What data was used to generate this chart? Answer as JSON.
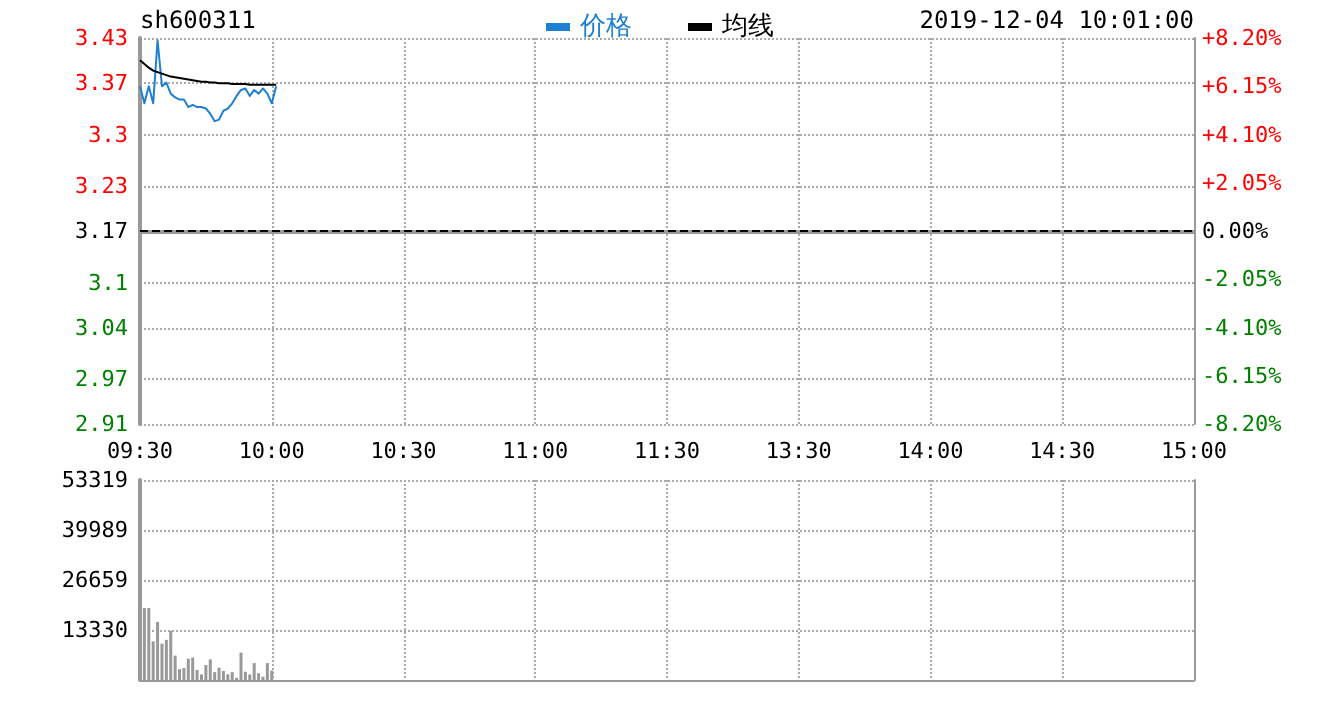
{
  "chart_data": [
    {
      "type": "line",
      "title": "sh600311",
      "annotations": [
        "2019-12-04 10:01:00"
      ],
      "legend": "top",
      "grid": true,
      "categories": [
        "09:30",
        null,
        null,
        null,
        null,
        null,
        null,
        null,
        null,
        null,
        null,
        null,
        null,
        null,
        null,
        null,
        null,
        null,
        null,
        null,
        null,
        null,
        null,
        null,
        null,
        null,
        null,
        null,
        null,
        null,
        "10:00",
        null,
        null,
        null,
        null,
        null,
        null,
        null,
        null,
        null,
        null,
        null,
        null,
        null,
        null,
        null,
        null,
        null,
        null,
        null,
        null,
        null,
        null,
        null,
        null,
        null,
        null,
        null,
        null,
        null,
        "10:30",
        null,
        null,
        null,
        null,
        null,
        null,
        null,
        null,
        null,
        null,
        null,
        null,
        null,
        null,
        null,
        null,
        null,
        null,
        null,
        null,
        null,
        null,
        null,
        null,
        null,
        null,
        null,
        null,
        null,
        "11:00",
        null,
        null,
        null,
        null,
        null,
        null,
        null,
        null,
        null,
        null,
        null,
        null,
        null,
        null,
        null,
        null,
        null,
        null,
        null,
        null,
        null,
        null,
        null,
        null,
        null,
        null,
        null,
        null,
        null,
        "11:30",
        null,
        null,
        null,
        null,
        null,
        null,
        null,
        null,
        null,
        null,
        null,
        null,
        null,
        null,
        null,
        null,
        null,
        null,
        null,
        null,
        null,
        null,
        null,
        null,
        null,
        null,
        null,
        null,
        null,
        "13:30",
        null,
        null,
        null,
        null,
        null,
        null,
        null,
        null,
        null,
        null,
        null,
        null,
        null,
        null,
        null,
        null,
        null,
        null,
        null,
        null,
        null,
        null,
        null,
        null,
        null,
        null,
        null,
        null,
        null,
        "14:00",
        null,
        null,
        null,
        null,
        null,
        null,
        null,
        null,
        null,
        null,
        null,
        null,
        null,
        null,
        null,
        null,
        null,
        null,
        null,
        null,
        null,
        null,
        null,
        null,
        null,
        null,
        null,
        null,
        null,
        "14:30",
        null,
        null,
        null,
        null,
        null,
        null,
        null,
        null,
        null,
        null,
        null,
        null,
        null,
        null,
        null,
        null,
        null,
        null,
        null,
        null,
        null,
        null,
        null,
        null,
        null,
        null,
        null,
        null,
        null,
        "15:00"
      ],
      "ylim": [
        2.91,
        3.43
      ],
      "yticks": [
        2.91,
        2.97,
        3.04,
        3.1,
        3.17,
        3.23,
        3.3,
        3.37,
        3.43
      ],
      "y2lim": [
        -8.2,
        8.2
      ],
      "y2ticks": [
        {
          "value": -8.2,
          "label": "-8.20%"
        },
        {
          "value": -6.15,
          "label": "-6.15%"
        },
        {
          "value": -4.1,
          "label": "-4.10%"
        },
        {
          "value": -2.05,
          "label": "-2.05%"
        },
        {
          "value": 0,
          "label": "0.00%"
        },
        {
          "value": 2.05,
          "label": "+2.05%"
        },
        {
          "value": 4.1,
          "label": "+4.10%"
        },
        {
          "value": 6.15,
          "label": "+6.15%"
        },
        {
          "value": 8.2,
          "label": "+8.20%"
        }
      ],
      "ref_lines": [
        {
          "axis": "y",
          "value": 3.17,
          "color": "#000000",
          "line_style": "dashed"
        }
      ],
      "series": [
        {
          "name": "价格",
          "color": "#1f7fd0",
          "values": [
            3.365,
            3.342,
            3.365,
            3.342,
            3.427,
            3.365,
            3.37,
            3.355,
            3.35,
            3.347,
            3.347,
            3.337,
            3.34,
            3.337,
            3.337,
            3.335,
            3.328,
            3.318,
            3.32,
            3.332,
            3.335,
            3.342,
            3.352,
            3.36,
            3.362,
            3.352,
            3.36,
            3.355,
            3.362,
            3.355,
            3.342,
            3.365,
            null,
            null,
            null,
            null,
            null,
            null,
            null,
            null,
            null,
            null,
            null,
            null,
            null,
            null,
            null,
            null,
            null,
            null,
            null,
            null,
            null,
            null,
            null,
            null,
            null,
            null,
            null,
            null,
            null,
            null,
            null,
            null,
            null,
            null,
            null,
            null,
            null,
            null,
            null,
            null,
            null,
            null,
            null,
            null,
            null,
            null,
            null,
            null,
            null,
            null,
            null,
            null,
            null,
            null,
            null,
            null,
            null,
            null,
            null,
            null,
            null,
            null,
            null,
            null,
            null,
            null,
            null,
            null,
            null,
            null,
            null,
            null,
            null,
            null,
            null,
            null,
            null,
            null,
            null,
            null,
            null,
            null,
            null,
            null,
            null,
            null,
            null,
            null,
            null,
            null,
            null,
            null,
            null,
            null,
            null,
            null,
            null,
            null,
            null,
            null,
            null,
            null,
            null,
            null,
            null,
            null,
            null,
            null,
            null,
            null,
            null,
            null,
            null,
            null,
            null,
            null,
            null,
            null,
            null,
            null,
            null,
            null,
            null,
            null,
            null,
            null,
            null,
            null,
            null,
            null,
            null,
            null,
            null,
            null,
            null,
            null,
            null,
            null,
            null,
            null,
            null,
            null,
            null,
            null,
            null,
            null,
            null,
            null,
            null,
            null,
            null,
            null,
            null,
            null,
            null,
            null,
            null,
            null,
            null,
            null,
            null,
            null,
            null,
            null,
            null,
            null,
            null,
            null,
            null,
            null,
            null,
            null,
            null,
            null,
            null,
            null,
            null,
            null,
            null,
            null,
            null,
            null,
            null,
            null,
            null,
            null,
            null,
            null,
            null,
            null,
            null,
            null,
            null,
            null,
            null,
            null,
            null,
            null,
            null,
            null,
            null,
            null,
            null,
            null,
            null,
            null,
            null,
            null,
            null
          ]
        },
        {
          "name": "均线",
          "color": "#000000",
          "values": [
            3.4,
            3.395,
            3.39,
            3.386,
            3.384,
            3.382,
            3.38,
            3.378,
            3.377,
            3.376,
            3.375,
            3.374,
            3.373,
            3.372,
            3.371,
            3.371,
            3.37,
            3.37,
            3.369,
            3.369,
            3.369,
            3.368,
            3.368,
            3.368,
            3.368,
            3.367,
            3.367,
            3.367,
            3.367,
            3.367,
            3.367,
            3.367,
            null,
            null,
            null,
            null,
            null,
            null,
            null,
            null,
            null,
            null,
            null,
            null,
            null,
            null,
            null,
            null,
            null,
            null,
            null,
            null,
            null,
            null,
            null,
            null,
            null,
            null,
            null,
            null,
            null,
            null,
            null,
            null,
            null,
            null,
            null,
            null,
            null,
            null,
            null,
            null,
            null,
            null,
            null,
            null,
            null,
            null,
            null,
            null,
            null,
            null,
            null,
            null,
            null,
            null,
            null,
            null,
            null,
            null,
            null,
            null,
            null,
            null,
            null,
            null,
            null,
            null,
            null,
            null,
            null,
            null,
            null,
            null,
            null,
            null,
            null,
            null,
            null,
            null,
            null,
            null,
            null,
            null,
            null,
            null,
            null,
            null,
            null,
            null,
            null,
            null,
            null,
            null,
            null,
            null,
            null,
            null,
            null,
            null,
            null,
            null,
            null,
            null,
            null,
            null,
            null,
            null,
            null,
            null,
            null,
            null,
            null,
            null,
            null,
            null,
            null,
            null,
            null,
            null,
            null,
            null,
            null,
            null,
            null,
            null,
            null,
            null,
            null,
            null,
            null,
            null,
            null,
            null,
            null,
            null,
            null,
            null,
            null,
            null,
            null,
            null,
            null,
            null,
            null,
            null,
            null,
            null,
            null,
            null,
            null,
            null,
            null,
            null,
            null,
            null,
            null,
            null,
            null,
            null,
            null,
            null,
            null,
            null,
            null,
            null,
            null,
            null,
            null,
            null,
            null,
            null,
            null,
            null,
            null,
            null,
            null,
            null,
            null,
            null,
            null,
            null,
            null,
            null,
            null,
            null,
            null,
            null,
            null,
            null,
            null,
            null,
            null,
            null,
            null,
            null,
            null,
            null,
            null,
            null,
            null,
            null,
            null,
            null,
            null,
            null,
            null,
            null,
            null,
            null,
            null
          ]
        }
      ]
    },
    {
      "type": "bar",
      "tick_labels": "y",
      "grid": true,
      "color": "#999999",
      "categories": [
        null,
        null,
        null,
        null,
        null,
        null,
        null,
        null,
        null,
        null,
        null,
        null,
        null,
        null,
        null,
        null,
        null,
        null,
        null,
        null,
        null,
        null,
        null,
        null,
        null,
        null,
        null,
        null,
        null,
        null,
        null,
        null,
        null,
        null,
        null,
        null,
        null,
        null,
        null,
        null,
        null,
        null,
        null,
        null,
        null,
        null,
        null,
        null,
        null,
        null,
        null,
        null,
        null,
        null,
        null,
        null,
        null,
        null,
        null,
        null,
        null,
        null,
        null,
        null,
        null,
        null,
        null,
        null,
        null,
        null,
        null,
        null,
        null,
        null,
        null,
        null,
        null,
        null,
        null,
        null,
        null,
        null,
        null,
        null,
        null,
        null,
        null,
        null,
        null,
        null,
        null,
        null,
        null,
        null,
        null,
        null,
        null,
        null,
        null,
        null,
        null,
        null,
        null,
        null,
        null,
        null,
        null,
        null,
        null,
        null,
        null,
        null,
        null,
        null,
        null,
        null,
        null,
        null,
        null,
        null,
        null,
        null,
        null,
        null,
        null,
        null,
        null,
        null,
        null,
        null,
        null,
        null,
        null,
        null,
        null,
        null,
        null,
        null,
        null,
        null,
        null,
        null,
        null,
        null,
        null,
        null,
        null,
        null,
        null,
        null,
        null,
        null,
        null,
        null,
        null,
        null,
        null,
        null,
        null,
        null,
        null,
        null,
        null,
        null,
        null,
        null,
        null,
        null,
        null,
        null,
        null,
        null,
        null,
        null,
        null,
        null,
        null,
        null,
        null,
        null,
        null,
        null,
        null,
        null,
        null,
        null,
        null,
        null,
        null,
        null,
        null,
        null,
        null,
        null,
        null,
        null,
        null,
        null,
        null,
        null,
        null,
        null,
        null,
        null,
        null,
        null,
        null,
        null,
        null,
        null,
        null,
        null,
        null,
        null,
        null,
        null,
        null,
        null,
        null,
        null,
        null,
        null,
        null,
        null,
        null,
        null,
        null,
        null,
        null,
        null,
        null,
        null,
        null,
        null,
        null,
        null,
        null,
        null,
        null,
        null,
        null
      ],
      "ylim": [
        0,
        53319
      ],
      "yticks": [
        13330,
        26659,
        39989,
        53319
      ],
      "values": [
        null,
        19200,
        19200,
        10300,
        15500,
        9700,
        10700,
        13100,
        6500,
        2900,
        3200,
        5700,
        6000,
        2700,
        1500,
        4000,
        5500,
        2100,
        3300,
        2400,
        1500,
        2100,
        600,
        7300,
        2200,
        1500,
        4500,
        1800,
        900,
        4500,
        2500,
        null,
        null,
        null,
        null,
        null,
        null,
        null,
        null,
        null,
        null,
        null,
        null,
        null,
        null,
        null,
        null,
        null,
        null,
        null,
        null,
        null,
        null,
        null,
        null,
        null,
        null,
        null,
        null,
        null,
        null,
        null,
        null,
        null,
        null,
        null,
        null,
        null,
        null,
        null,
        null,
        null,
        null,
        null,
        null,
        null,
        null,
        null,
        null,
        null,
        null,
        null,
        null,
        null,
        null,
        null,
        null,
        null,
        null,
        null,
        null,
        null,
        null,
        null,
        null,
        null,
        null,
        null,
        null,
        null,
        null,
        null,
        null,
        null,
        null,
        null,
        null,
        null,
        null,
        null,
        null,
        null,
        null,
        null,
        null,
        null,
        null,
        null,
        null,
        null,
        null,
        null,
        null,
        null,
        null,
        null,
        null,
        null,
        null,
        null,
        null,
        null,
        null,
        null,
        null,
        null,
        null,
        null,
        null,
        null,
        null,
        null,
        null,
        null,
        null,
        null,
        null,
        null,
        null,
        null,
        null,
        null,
        null,
        null,
        null,
        null,
        null,
        null,
        null,
        null,
        null,
        null,
        null,
        null,
        null,
        null,
        null,
        null,
        null,
        null,
        null,
        null,
        null,
        null,
        null,
        null,
        null,
        null,
        null,
        null,
        null,
        null,
        null,
        null,
        null,
        null,
        null,
        null,
        null,
        null,
        null,
        null,
        null,
        null,
        null,
        null,
        null,
        null,
        null,
        null,
        null,
        null,
        null,
        null,
        null,
        null,
        null,
        null,
        null,
        null,
        null,
        null,
        null,
        null,
        null,
        null,
        null,
        null,
        null,
        null,
        null,
        null,
        null,
        null,
        null,
        null,
        null,
        null,
        null,
        null,
        null,
        null,
        null,
        null,
        null,
        null,
        null,
        null,
        null,
        null,
        null
      ]
    }
  ]
}
